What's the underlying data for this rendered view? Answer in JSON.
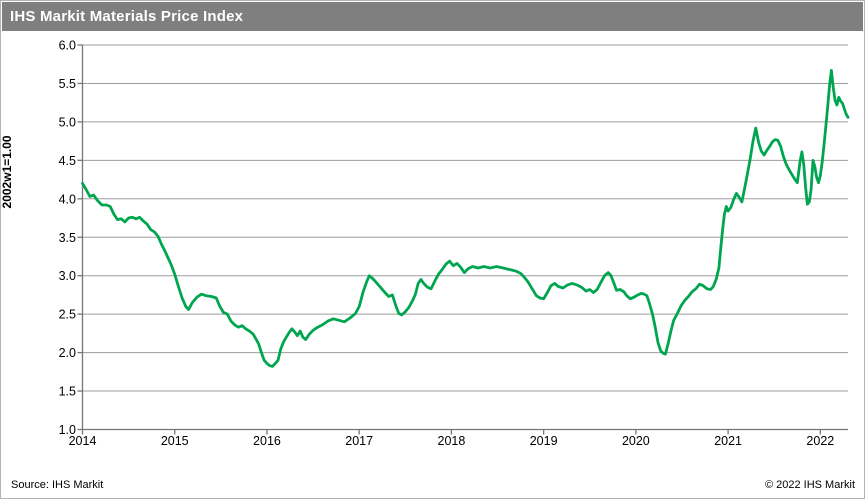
{
  "header": {
    "title": "IHS Markit Materials Price Index"
  },
  "footer": {
    "source": "Source: IHS Markit",
    "copyright": "© 2022 IHS Markit"
  },
  "colors": {
    "banner_bg": "#7f7f7f",
    "banner_text": "#ffffff",
    "line": "#00A64F",
    "gridline": "#9d9d9d",
    "axis": "#767676",
    "tick_text": "#000000",
    "card_border": "#b3b3b3",
    "background": "#ffffff"
  },
  "chart_data": {
    "type": "line",
    "title": "IHS Markit Materials Price Index",
    "xlabel": "",
    "ylabel": "2002w1=1.00",
    "ylim": [
      1.0,
      6.0
    ],
    "xlim": [
      2014,
      2022.3
    ],
    "yticks": [
      1.0,
      1.5,
      2.0,
      2.5,
      3.0,
      3.5,
      4.0,
      4.5,
      5.0,
      5.5,
      6.0
    ],
    "xticks": [
      2014,
      2015,
      2016,
      2017,
      2018,
      2019,
      2020,
      2021,
      2022
    ],
    "grid": "horizontal",
    "legend_position": "none",
    "series": [
      {
        "name": "Materials Price Index (2002w1=1.00)",
        "color": "#00A64F",
        "points": [
          [
            2014.0,
            4.2
          ],
          [
            2014.04,
            4.12
          ],
          [
            2014.08,
            4.03
          ],
          [
            2014.12,
            4.05
          ],
          [
            2014.16,
            3.98
          ],
          [
            2014.21,
            3.92
          ],
          [
            2014.26,
            3.92
          ],
          [
            2014.3,
            3.9
          ],
          [
            2014.34,
            3.8
          ],
          [
            2014.38,
            3.73
          ],
          [
            2014.42,
            3.74
          ],
          [
            2014.46,
            3.7
          ],
          [
            2014.5,
            3.75
          ],
          [
            2014.54,
            3.76
          ],
          [
            2014.58,
            3.74
          ],
          [
            2014.62,
            3.76
          ],
          [
            2014.66,
            3.71
          ],
          [
            2014.7,
            3.67
          ],
          [
            2014.74,
            3.6
          ],
          [
            2014.78,
            3.57
          ],
          [
            2014.82,
            3.51
          ],
          [
            2014.86,
            3.4
          ],
          [
            2014.89,
            3.33
          ],
          [
            2014.92,
            3.25
          ],
          [
            2014.96,
            3.15
          ],
          [
            2015.0,
            3.02
          ],
          [
            2015.04,
            2.86
          ],
          [
            2015.08,
            2.71
          ],
          [
            2015.12,
            2.6
          ],
          [
            2015.15,
            2.56
          ],
          [
            2015.19,
            2.65
          ],
          [
            2015.24,
            2.72
          ],
          [
            2015.29,
            2.76
          ],
          [
            2015.34,
            2.74
          ],
          [
            2015.4,
            2.73
          ],
          [
            2015.45,
            2.71
          ],
          [
            2015.49,
            2.6
          ],
          [
            2015.53,
            2.52
          ],
          [
            2015.57,
            2.5
          ],
          [
            2015.61,
            2.41
          ],
          [
            2015.65,
            2.36
          ],
          [
            2015.69,
            2.33
          ],
          [
            2015.73,
            2.35
          ],
          [
            2015.77,
            2.31
          ],
          [
            2015.81,
            2.28
          ],
          [
            2015.85,
            2.24
          ],
          [
            2015.88,
            2.18
          ],
          [
            2015.91,
            2.11
          ],
          [
            2015.94,
            2.0
          ],
          [
            2015.97,
            1.9
          ],
          [
            2016.0,
            1.86
          ],
          [
            2016.03,
            1.83
          ],
          [
            2016.06,
            1.82
          ],
          [
            2016.09,
            1.86
          ],
          [
            2016.12,
            1.9
          ],
          [
            2016.15,
            2.05
          ],
          [
            2016.18,
            2.14
          ],
          [
            2016.21,
            2.2
          ],
          [
            2016.24,
            2.26
          ],
          [
            2016.27,
            2.31
          ],
          [
            2016.3,
            2.27
          ],
          [
            2016.33,
            2.22
          ],
          [
            2016.36,
            2.28
          ],
          [
            2016.39,
            2.2
          ],
          [
            2016.42,
            2.17
          ],
          [
            2016.46,
            2.24
          ],
          [
            2016.5,
            2.29
          ],
          [
            2016.55,
            2.33
          ],
          [
            2016.6,
            2.36
          ],
          [
            2016.66,
            2.41
          ],
          [
            2016.72,
            2.44
          ],
          [
            2016.78,
            2.42
          ],
          [
            2016.84,
            2.4
          ],
          [
            2016.9,
            2.45
          ],
          [
            2016.96,
            2.51
          ],
          [
            2017.0,
            2.6
          ],
          [
            2017.04,
            2.78
          ],
          [
            2017.08,
            2.92
          ],
          [
            2017.11,
            3.0
          ],
          [
            2017.14,
            2.97
          ],
          [
            2017.18,
            2.92
          ],
          [
            2017.23,
            2.85
          ],
          [
            2017.28,
            2.78
          ],
          [
            2017.32,
            2.73
          ],
          [
            2017.36,
            2.75
          ],
          [
            2017.4,
            2.6
          ],
          [
            2017.43,
            2.51
          ],
          [
            2017.46,
            2.49
          ],
          [
            2017.5,
            2.53
          ],
          [
            2017.54,
            2.59
          ],
          [
            2017.58,
            2.68
          ],
          [
            2017.61,
            2.76
          ],
          [
            2017.64,
            2.9
          ],
          [
            2017.67,
            2.95
          ],
          [
            2017.7,
            2.9
          ],
          [
            2017.74,
            2.85
          ],
          [
            2017.78,
            2.83
          ],
          [
            2017.82,
            2.93
          ],
          [
            2017.86,
            3.02
          ],
          [
            2017.9,
            3.08
          ],
          [
            2017.94,
            3.15
          ],
          [
            2017.98,
            3.19
          ],
          [
            2018.02,
            3.13
          ],
          [
            2018.06,
            3.16
          ],
          [
            2018.1,
            3.11
          ],
          [
            2018.14,
            3.04
          ],
          [
            2018.18,
            3.09
          ],
          [
            2018.23,
            3.12
          ],
          [
            2018.29,
            3.1
          ],
          [
            2018.35,
            3.12
          ],
          [
            2018.42,
            3.1
          ],
          [
            2018.49,
            3.12
          ],
          [
            2018.56,
            3.1
          ],
          [
            2018.63,
            3.08
          ],
          [
            2018.7,
            3.06
          ],
          [
            2018.75,
            3.03
          ],
          [
            2018.79,
            2.98
          ],
          [
            2018.83,
            2.92
          ],
          [
            2018.88,
            2.82
          ],
          [
            2018.92,
            2.74
          ],
          [
            2018.96,
            2.71
          ],
          [
            2019.0,
            2.7
          ],
          [
            2019.04,
            2.78
          ],
          [
            2019.08,
            2.87
          ],
          [
            2019.12,
            2.9
          ],
          [
            2019.16,
            2.86
          ],
          [
            2019.21,
            2.84
          ],
          [
            2019.26,
            2.88
          ],
          [
            2019.31,
            2.9
          ],
          [
            2019.36,
            2.88
          ],
          [
            2019.41,
            2.85
          ],
          [
            2019.46,
            2.8
          ],
          [
            2019.5,
            2.82
          ],
          [
            2019.54,
            2.78
          ],
          [
            2019.58,
            2.82
          ],
          [
            2019.62,
            2.91
          ],
          [
            2019.66,
            3.0
          ],
          [
            2019.7,
            3.04
          ],
          [
            2019.73,
            3.0
          ],
          [
            2019.76,
            2.91
          ],
          [
            2019.79,
            2.81
          ],
          [
            2019.83,
            2.82
          ],
          [
            2019.87,
            2.79
          ],
          [
            2019.9,
            2.74
          ],
          [
            2019.94,
            2.7
          ],
          [
            2019.98,
            2.72
          ],
          [
            2020.02,
            2.75
          ],
          [
            2020.06,
            2.77
          ],
          [
            2020.09,
            2.76
          ],
          [
            2020.12,
            2.74
          ],
          [
            2020.15,
            2.63
          ],
          [
            2020.18,
            2.5
          ],
          [
            2020.21,
            2.33
          ],
          [
            2020.24,
            2.13
          ],
          [
            2020.27,
            2.02
          ],
          [
            2020.3,
            1.99
          ],
          [
            2020.32,
            1.98
          ],
          [
            2020.35,
            2.12
          ],
          [
            2020.38,
            2.28
          ],
          [
            2020.41,
            2.42
          ],
          [
            2020.45,
            2.51
          ],
          [
            2020.49,
            2.61
          ],
          [
            2020.53,
            2.68
          ],
          [
            2020.57,
            2.73
          ],
          [
            2020.61,
            2.79
          ],
          [
            2020.65,
            2.83
          ],
          [
            2020.69,
            2.89
          ],
          [
            2020.73,
            2.87
          ],
          [
            2020.77,
            2.83
          ],
          [
            2020.81,
            2.82
          ],
          [
            2020.84,
            2.86
          ],
          [
            2020.87,
            2.95
          ],
          [
            2020.9,
            3.1
          ],
          [
            2020.92,
            3.35
          ],
          [
            2020.94,
            3.6
          ],
          [
            2020.96,
            3.8
          ],
          [
            2020.98,
            3.9
          ],
          [
            2021.0,
            3.84
          ],
          [
            2021.03,
            3.89
          ],
          [
            2021.06,
            3.99
          ],
          [
            2021.09,
            4.07
          ],
          [
            2021.12,
            4.02
          ],
          [
            2021.15,
            3.96
          ],
          [
            2021.18,
            4.14
          ],
          [
            2021.21,
            4.33
          ],
          [
            2021.24,
            4.52
          ],
          [
            2021.27,
            4.75
          ],
          [
            2021.3,
            4.92
          ],
          [
            2021.33,
            4.74
          ],
          [
            2021.36,
            4.62
          ],
          [
            2021.39,
            4.57
          ],
          [
            2021.42,
            4.63
          ],
          [
            2021.45,
            4.68
          ],
          [
            2021.48,
            4.74
          ],
          [
            2021.51,
            4.77
          ],
          [
            2021.54,
            4.76
          ],
          [
            2021.57,
            4.68
          ],
          [
            2021.6,
            4.55
          ],
          [
            2021.63,
            4.45
          ],
          [
            2021.66,
            4.38
          ],
          [
            2021.69,
            4.32
          ],
          [
            2021.72,
            4.26
          ],
          [
            2021.75,
            4.21
          ],
          [
            2021.78,
            4.48
          ],
          [
            2021.8,
            4.61
          ],
          [
            2021.82,
            4.45
          ],
          [
            2021.84,
            4.15
          ],
          [
            2021.86,
            3.93
          ],
          [
            2021.88,
            3.96
          ],
          [
            2021.9,
            4.12
          ],
          [
            2021.92,
            4.5
          ],
          [
            2021.94,
            4.42
          ],
          [
            2021.96,
            4.28
          ],
          [
            2021.98,
            4.21
          ],
          [
            2022.0,
            4.3
          ],
          [
            2022.02,
            4.48
          ],
          [
            2022.04,
            4.7
          ],
          [
            2022.06,
            4.95
          ],
          [
            2022.08,
            5.2
          ],
          [
            2022.1,
            5.48
          ],
          [
            2022.12,
            5.67
          ],
          [
            2022.14,
            5.45
          ],
          [
            2022.16,
            5.28
          ],
          [
            2022.18,
            5.22
          ],
          [
            2022.2,
            5.32
          ],
          [
            2022.22,
            5.27
          ],
          [
            2022.24,
            5.24
          ],
          [
            2022.26,
            5.17
          ],
          [
            2022.28,
            5.1
          ],
          [
            2022.3,
            5.06
          ]
        ]
      }
    ]
  }
}
